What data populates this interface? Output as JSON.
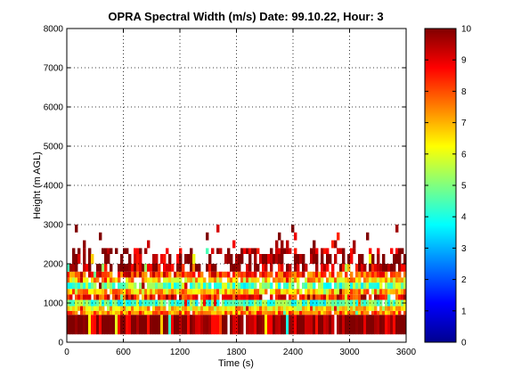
{
  "chart_data": {
    "type": "heatmap",
    "title": "OPRA Spectral Width (m/s)  Date: 99.10.22, Hour: 3",
    "xlabel": "Time (s)",
    "ylabel": "Height (m AGL)",
    "xlim": [
      0,
      3600
    ],
    "ylim": [
      0,
      8000
    ],
    "xticks": [
      "0",
      "600",
      "1200",
      "1800",
      "2400",
      "3000",
      "3600"
    ],
    "yticks": [
      "0",
      "1000",
      "2000",
      "3000",
      "4000",
      "5000",
      "6000",
      "7000",
      "8000"
    ],
    "grid": true,
    "colorbar": {
      "clim": [
        0,
        10
      ],
      "ticks": [
        "0",
        "1",
        "2",
        "3",
        "4",
        "5",
        "6",
        "7",
        "8",
        "9",
        "10"
      ],
      "colormap": "jet"
    },
    "bands": [
      {
        "y0": 200,
        "y1": 700,
        "value": 9.9,
        "fill": 0.99
      },
      {
        "y0": 700,
        "y1": 800,
        "value": 7.5,
        "fill": 0.95
      },
      {
        "y0": 800,
        "y1": 920,
        "value": 6.6,
        "fill": 0.95
      },
      {
        "y0": 920,
        "y1": 1080,
        "value": 4.6,
        "fill": 0.95
      },
      {
        "y0": 1080,
        "y1": 1220,
        "value": 8.6,
        "fill": 0.92
      },
      {
        "y0": 1220,
        "y1": 1360,
        "value": 7.0,
        "fill": 0.9
      },
      {
        "y0": 1360,
        "y1": 1520,
        "value": 4.8,
        "fill": 0.9
      },
      {
        "y0": 1520,
        "y1": 1650,
        "value": 6.8,
        "fill": 0.88
      },
      {
        "y0": 1650,
        "y1": 1800,
        "value": 8.2,
        "fill": 0.85
      },
      {
        "y0": 1800,
        "y1": 2000,
        "value": 9.6,
        "fill": 0.65
      },
      {
        "y0": 2000,
        "y1": 2250,
        "value": 9.8,
        "fill": 0.55
      },
      {
        "y0": 2250,
        "y1": 2400,
        "value": 9.7,
        "fill": 0.45
      },
      {
        "y0": 2400,
        "y1": 2600,
        "value": 9.2,
        "fill": 0.12
      },
      {
        "y0": 2600,
        "y1": 2800,
        "value": 9.5,
        "fill": 0.06
      },
      {
        "y0": 2800,
        "y1": 3000,
        "value": 9.8,
        "fill": 0.05
      }
    ]
  }
}
